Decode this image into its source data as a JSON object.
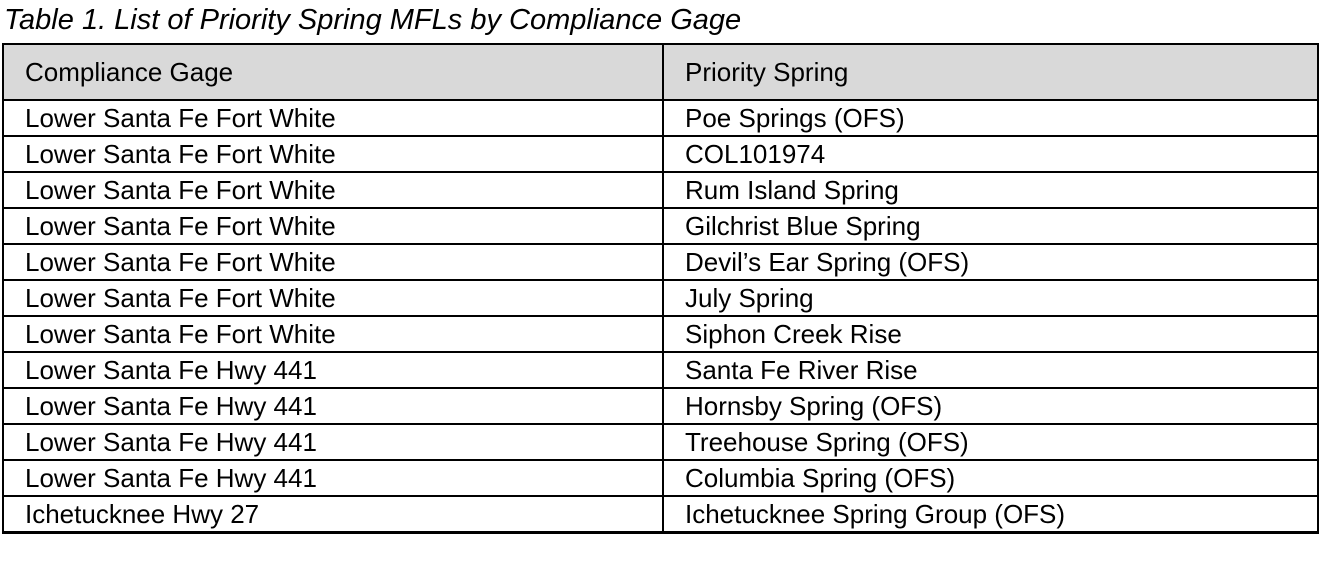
{
  "title": "Table 1. List of Priority Spring MFLs by Compliance Gage",
  "table": {
    "columns": [
      "Compliance Gage",
      "Priority Spring"
    ],
    "rows": [
      [
        "Lower Santa Fe Fort White",
        "Poe Springs (OFS)"
      ],
      [
        "Lower Santa Fe Fort White",
        "COL101974"
      ],
      [
        "Lower Santa Fe Fort White",
        "Rum Island Spring"
      ],
      [
        "Lower Santa Fe Fort White",
        "Gilchrist Blue Spring"
      ],
      [
        "Lower Santa Fe Fort White",
        "Devil’s Ear Spring (OFS)"
      ],
      [
        "Lower Santa Fe Fort White",
        "July Spring"
      ],
      [
        "Lower Santa Fe Fort White",
        "Siphon Creek Rise"
      ],
      [
        "Lower Santa Fe Hwy 441",
        "Santa Fe River Rise"
      ],
      [
        "Lower Santa Fe Hwy 441",
        "Hornsby Spring (OFS)"
      ],
      [
        "Lower Santa Fe Hwy 441",
        "Treehouse Spring (OFS)"
      ],
      [
        "Lower Santa Fe Hwy 441",
        "Columbia Spring (OFS)"
      ],
      [
        "Ichetucknee Hwy 27",
        "Ichetucknee Spring Group (OFS)"
      ]
    ],
    "colors": {
      "header_bg": "#d9d9d9",
      "row_bg": "#ffffff",
      "border": "#000000",
      "text": "#000000"
    }
  }
}
